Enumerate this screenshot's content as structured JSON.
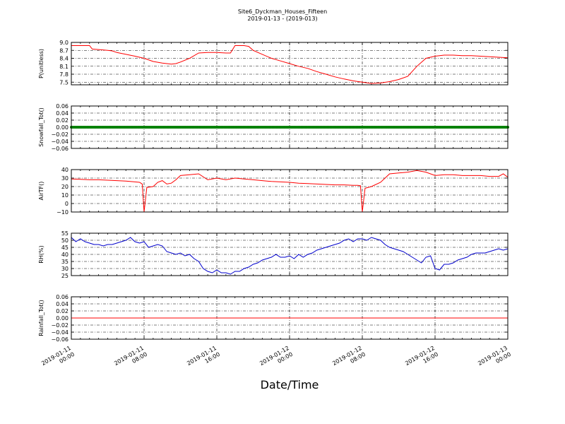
{
  "title": "Site6_Dyckman_Houses_Fifteen",
  "subtitle": "2019-01-13 - (2019-013)",
  "xlabel": "Date/Time",
  "x_ticks": [
    {
      "x": 0,
      "line1": "2019-01-11",
      "line2": "00:00"
    },
    {
      "x": 8,
      "line1": "2019-01-11",
      "line2": "08:00"
    },
    {
      "x": 16,
      "line1": "2019-01-11",
      "line2": "16:00"
    },
    {
      "x": 24,
      "line1": "2019-01-12",
      "line2": "00:00"
    },
    {
      "x": 32,
      "line1": "2019-01-12",
      "line2": "08:00"
    },
    {
      "x": 40,
      "line1": "2019-01-12",
      "line2": "16:00"
    },
    {
      "x": 48,
      "line1": "2019-01-13",
      "line2": "00:00"
    }
  ],
  "chart_data": [
    {
      "type": "line",
      "ylabel": "P(unitless)",
      "color": "#ff0000",
      "ylim": [
        7.4,
        9.0
      ],
      "yticks": [
        7.5,
        7.8,
        8.1,
        8.4,
        8.7,
        9.0
      ],
      "ytick_labels": [
        "7.5",
        "7.8",
        "8.1",
        "8.4",
        "8.7",
        "9.0"
      ],
      "xlim": [
        0,
        48
      ],
      "x": [
        0,
        2,
        2.3,
        3,
        4,
        4.5,
        5,
        6,
        7,
        8,
        9,
        10,
        11,
        11.5,
        12,
        13,
        14,
        15,
        16,
        17,
        17.5,
        18,
        19,
        19.5,
        20,
        21,
        22,
        23,
        24,
        25,
        26,
        27,
        28,
        29,
        30,
        31,
        32,
        33,
        34,
        35,
        36,
        37,
        38,
        39,
        40,
        41,
        42,
        43,
        44,
        45,
        46,
        47,
        48
      ],
      "y": [
        8.88,
        8.88,
        8.75,
        8.73,
        8.7,
        8.68,
        8.62,
        8.55,
        8.48,
        8.4,
        8.28,
        8.22,
        8.18,
        8.2,
        8.26,
        8.4,
        8.6,
        8.62,
        8.62,
        8.6,
        8.6,
        8.88,
        8.88,
        8.85,
        8.7,
        8.55,
        8.4,
        8.3,
        8.2,
        8.1,
        8.02,
        7.9,
        7.8,
        7.7,
        7.62,
        7.55,
        7.5,
        7.45,
        7.47,
        7.52,
        7.6,
        7.72,
        8.1,
        8.4,
        8.48,
        8.52,
        8.52,
        8.5,
        8.5,
        8.48,
        8.46,
        8.44,
        8.42
      ]
    },
    {
      "type": "scatter",
      "ylabel": "Snowfall_Tot()",
      "color": "#008000",
      "ylim": [
        -0.06,
        0.06
      ],
      "yticks": [
        -0.06,
        -0.04,
        -0.02,
        0.0,
        0.02,
        0.04,
        0.06
      ],
      "ytick_labels": [
        "−0.06",
        "−0.04",
        "−0.02",
        "0.00",
        "0.02",
        "0.04",
        "0.06"
      ],
      "xlim": [
        0,
        48
      ],
      "x_range": [
        0,
        48
      ],
      "y_constant": 0.0
    },
    {
      "type": "line",
      "ylabel": "AirTF()",
      "color": "#ff0000",
      "ylim": [
        -10,
        40
      ],
      "yticks": [
        -10,
        0,
        10,
        20,
        30,
        40
      ],
      "ytick_labels": [
        "−10",
        "0",
        "10",
        "20",
        "30",
        "40"
      ],
      "xlim": [
        0,
        48
      ],
      "x": [
        0,
        1,
        2,
        3,
        4,
        5,
        6,
        7,
        7.5,
        7.8,
        8.0,
        8.3,
        9,
        9.5,
        10,
        10.5,
        11,
        11.5,
        12,
        13,
        14,
        15,
        16,
        17,
        18,
        19,
        20,
        21,
        22,
        23,
        24,
        25,
        26,
        27,
        28,
        29,
        30,
        31,
        31.5,
        31.8,
        32.0,
        32.3,
        33,
        34,
        35,
        36,
        37,
        38,
        39,
        40,
        41,
        42,
        43,
        44,
        45,
        46,
        47,
        47.5,
        48
      ],
      "y": [
        29,
        28.5,
        28,
        28,
        27.5,
        27,
        26.5,
        25.5,
        25,
        23,
        -10,
        19,
        20,
        25,
        27,
        23,
        24,
        28,
        33,
        34,
        35,
        28,
        30,
        28,
        30,
        29,
        28,
        27,
        26,
        25.5,
        25,
        24,
        23.5,
        23,
        22.5,
        22,
        22,
        21.5,
        21.5,
        21,
        -10,
        18,
        20,
        25,
        35,
        36,
        37,
        39,
        37,
        33,
        34,
        34,
        33,
        33,
        33,
        32,
        32,
        35,
        31
      ]
    },
    {
      "type": "line",
      "ylabel": "RH(%)",
      "color": "#0000cc",
      "ylim": [
        25,
        55
      ],
      "yticks": [
        25,
        30,
        35,
        40,
        45,
        50,
        55
      ],
      "ytick_labels": [
        "25",
        "30",
        "35",
        "40",
        "45",
        "50",
        "55"
      ],
      "xlim": [
        0,
        48
      ],
      "x": [
        0,
        0.5,
        1,
        1.5,
        2,
        2.5,
        3,
        3.5,
        4,
        4.5,
        5,
        5.5,
        6,
        6.5,
        7,
        7.5,
        8,
        8.5,
        9,
        9.5,
        10,
        10.5,
        11,
        11.5,
        12,
        12.5,
        13,
        13.5,
        14,
        14.5,
        15,
        15.5,
        16,
        16.5,
        17,
        17.5,
        18,
        18.5,
        19,
        19.5,
        20,
        20.5,
        21,
        21.5,
        22,
        22.5,
        23,
        23.5,
        24,
        24.5,
        25,
        25.5,
        26,
        26.5,
        27,
        27.5,
        28,
        28.5,
        29,
        29.5,
        30,
        30.5,
        31,
        31.5,
        32,
        32.5,
        33,
        33.5,
        34,
        34.5,
        35,
        35.5,
        36,
        36.5,
        37,
        37.5,
        38,
        38.5,
        39,
        39.5,
        40,
        40.5,
        41,
        41.5,
        42,
        42.5,
        43,
        43.5,
        44,
        44.5,
        45,
        45.5,
        46,
        46.5,
        47,
        47.5,
        48
      ],
      "y": [
        52,
        49,
        51,
        49,
        48,
        47,
        47,
        46,
        47,
        47,
        48,
        49,
        50,
        52,
        49,
        48,
        49,
        45,
        46,
        47,
        46,
        42,
        41,
        40,
        41,
        39,
        40,
        37,
        35,
        30,
        28,
        27,
        29,
        27,
        27,
        26,
        28,
        28,
        30,
        31,
        33,
        34,
        36,
        37,
        38,
        40,
        38,
        38,
        39,
        37,
        40,
        38,
        40,
        41,
        43,
        44,
        45,
        46,
        47,
        48,
        50,
        51,
        49,
        51,
        51,
        50,
        52,
        51,
        50,
        47,
        45,
        44,
        43,
        42,
        40,
        38,
        36,
        34,
        38,
        39,
        30,
        29,
        33,
        33,
        34,
        36,
        37,
        38,
        40,
        41,
        41,
        41,
        42,
        43,
        44,
        43,
        44
      ]
    },
    {
      "type": "line",
      "ylabel": "Rainfall_Tot()",
      "color": "#ff0000",
      "ylim": [
        -0.06,
        0.06
      ],
      "yticks": [
        -0.06,
        -0.04,
        -0.02,
        0.0,
        0.02,
        0.04,
        0.06
      ],
      "ytick_labels": [
        "−0.06",
        "−0.04",
        "−0.02",
        "0.00",
        "0.02",
        "0.04",
        "0.06"
      ],
      "xlim": [
        0,
        48
      ],
      "x": [
        0,
        48
      ],
      "y": [
        0.0,
        0.0
      ]
    }
  ]
}
